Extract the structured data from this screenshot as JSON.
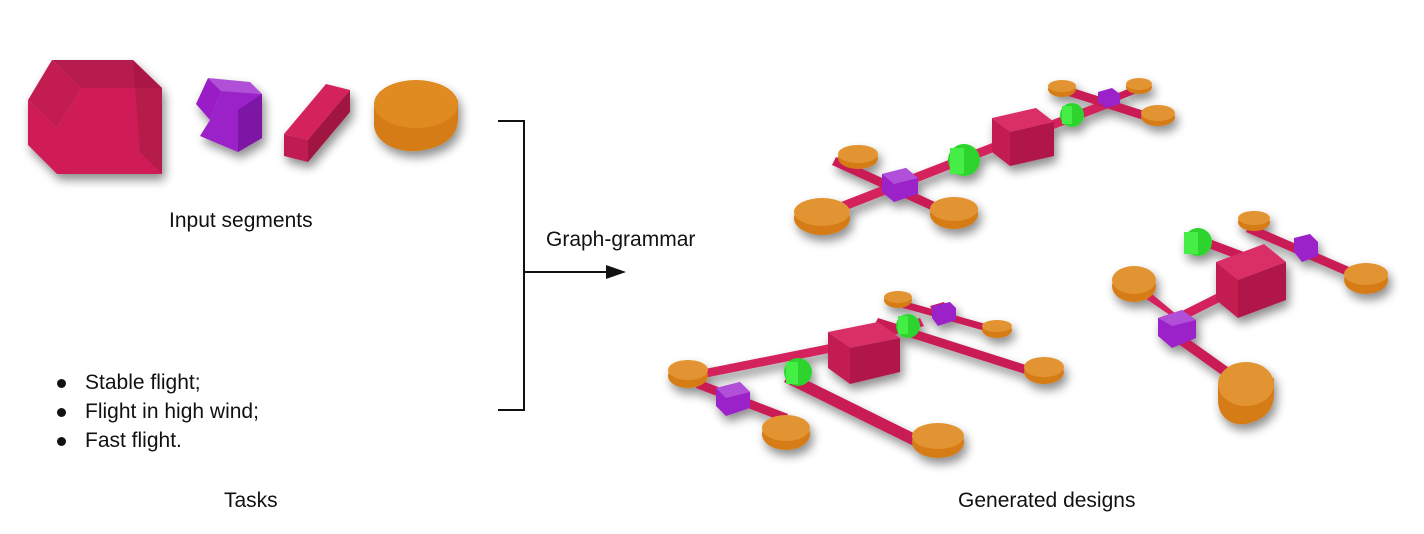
{
  "labels": {
    "input_segments": "Input segments",
    "graph_grammar": "Graph-grammar",
    "tasks": "Tasks",
    "generated_designs": "Generated designs"
  },
  "tasks": [
    "Stable flight;",
    "Flight in high wind;",
    "Fast flight."
  ],
  "colors": {
    "body": "#c91a55",
    "joint": "#9b1fc9",
    "motor": "#33e633",
    "rotor": "#e07f1a",
    "text": "#111111"
  },
  "segments": [
    "body-cube-icon",
    "joint-cube-icon",
    "arm-link-icon",
    "rotor-disk-icon"
  ]
}
